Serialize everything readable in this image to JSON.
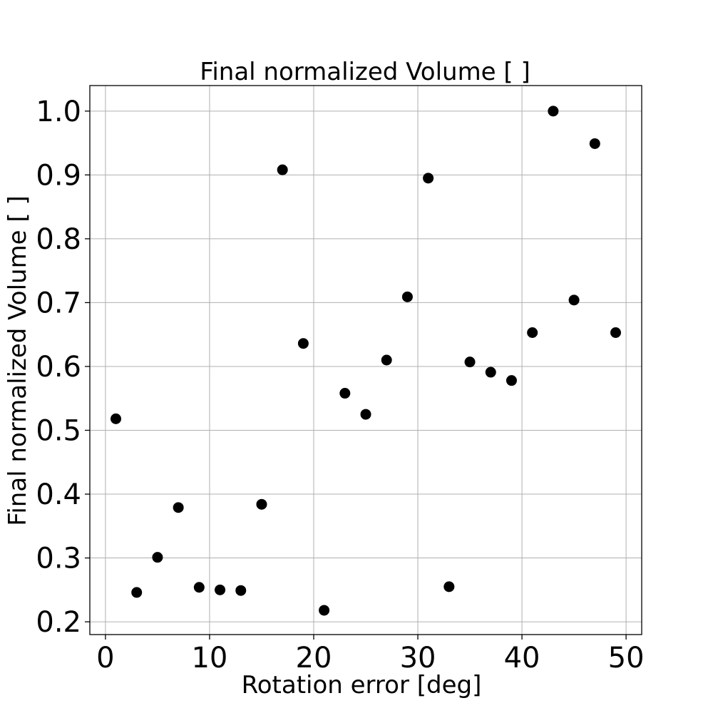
{
  "chart_data": {
    "type": "scatter",
    "title": "Final normalized Volume [ ]",
    "xlabel": "Rotation error [deg]",
    "ylabel": "Final normalized Volume [ ]",
    "xlim": [
      -1.5,
      51.5
    ],
    "ylim": [
      0.18,
      1.04
    ],
    "xticks": [
      0,
      10,
      20,
      30,
      40,
      50
    ],
    "xtick_labels": [
      "0",
      "10",
      "20",
      "30",
      "40",
      "50"
    ],
    "yticks": [
      0.2,
      0.3,
      0.4,
      0.5,
      0.6,
      0.7,
      0.8,
      0.9,
      1.0
    ],
    "ytick_labels": [
      "0.2",
      "0.3",
      "0.4",
      "0.5",
      "0.6",
      "0.7",
      "0.8",
      "0.9",
      "1.0"
    ],
    "grid": true,
    "marker_color": "#000000",
    "grid_color": "#b0b0b0",
    "series": [
      {
        "points": [
          {
            "x": 1,
            "y": 0.518
          },
          {
            "x": 3,
            "y": 0.246
          },
          {
            "x": 5,
            "y": 0.301
          },
          {
            "x": 7,
            "y": 0.379
          },
          {
            "x": 9,
            "y": 0.254
          },
          {
            "x": 11,
            "y": 0.25
          },
          {
            "x": 13,
            "y": 0.249
          },
          {
            "x": 15,
            "y": 0.384
          },
          {
            "x": 17,
            "y": 0.908
          },
          {
            "x": 19,
            "y": 0.636
          },
          {
            "x": 21,
            "y": 0.218
          },
          {
            "x": 23,
            "y": 0.558
          },
          {
            "x": 25,
            "y": 0.525
          },
          {
            "x": 27,
            "y": 0.61
          },
          {
            "x": 29,
            "y": 0.709
          },
          {
            "x": 31,
            "y": 0.895
          },
          {
            "x": 33,
            "y": 0.255
          },
          {
            "x": 35,
            "y": 0.607
          },
          {
            "x": 37,
            "y": 0.591
          },
          {
            "x": 39,
            "y": 0.578
          },
          {
            "x": 41,
            "y": 0.653
          },
          {
            "x": 43,
            "y": 1.0
          },
          {
            "x": 45,
            "y": 0.704
          },
          {
            "x": 47,
            "y": 0.949
          },
          {
            "x": 49,
            "y": 0.653
          }
        ]
      }
    ]
  }
}
